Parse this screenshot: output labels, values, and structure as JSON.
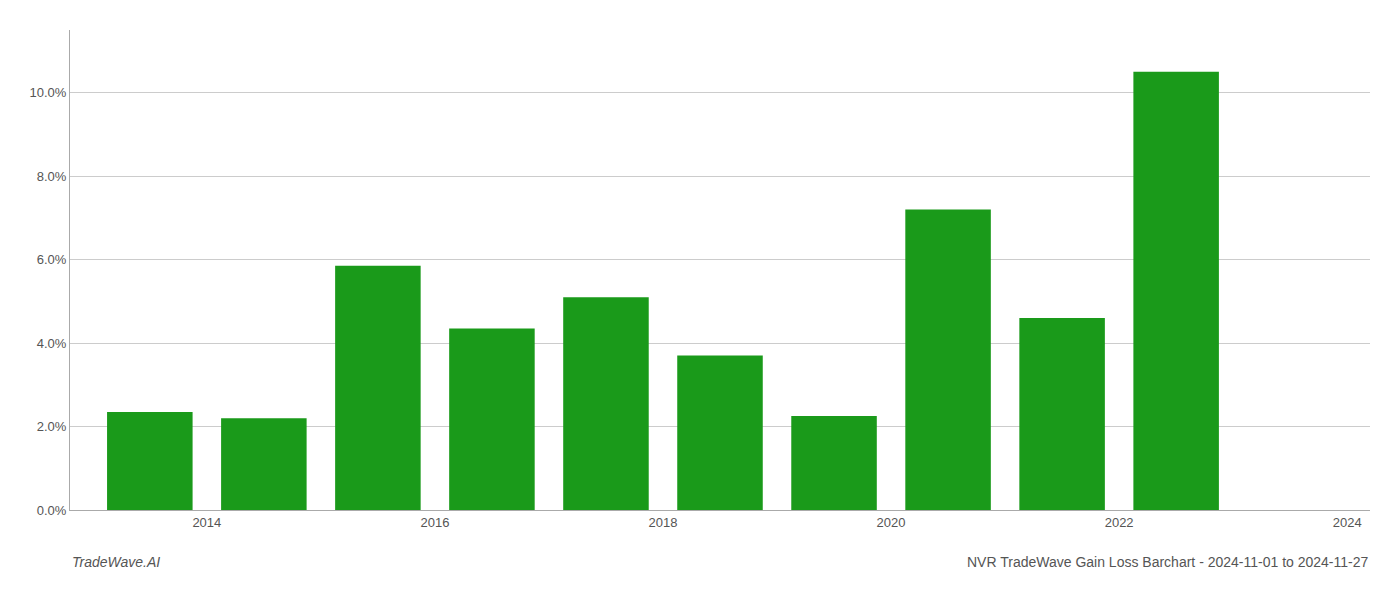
{
  "chart_data": {
    "type": "bar",
    "title": "NVR TradeWave Gain Loss Barchart - 2024-11-01 to 2024-11-27",
    "annotations": [
      {
        "text": "TradeWave.AI"
      }
    ],
    "x": [
      2014,
      2015,
      2016,
      2017,
      2018,
      2019,
      2020,
      2021,
      2022,
      2023
    ],
    "values": [
      0.0235,
      0.022,
      0.0585,
      0.0435,
      0.051,
      0.037,
      0.0225,
      0.072,
      0.046,
      0.105
    ],
    "color": "#1a9a1a",
    "xlim": [
      2013.3,
      2024.7
    ],
    "xticks": [
      {
        "value": 2014.5,
        "label": "2014"
      },
      {
        "value": 2016.5,
        "label": "2016"
      },
      {
        "value": 2018.5,
        "label": "2018"
      },
      {
        "value": 2020.5,
        "label": "2020"
      },
      {
        "value": 2022.5,
        "label": "2022"
      },
      {
        "value": 2024.5,
        "label": "2024"
      }
    ],
    "ylim": [
      0,
      0.115
    ],
    "yticks": [
      {
        "value": 0.0,
        "label": "0.0%"
      },
      {
        "value": 0.02,
        "label": "2.0%"
      },
      {
        "value": 0.04,
        "label": "4.0%"
      },
      {
        "value": 0.06,
        "label": "6.0%"
      },
      {
        "value": 0.08,
        "label": "8.0%"
      },
      {
        "value": 0.1,
        "label": "10.0%"
      }
    ],
    "grid": true
  }
}
